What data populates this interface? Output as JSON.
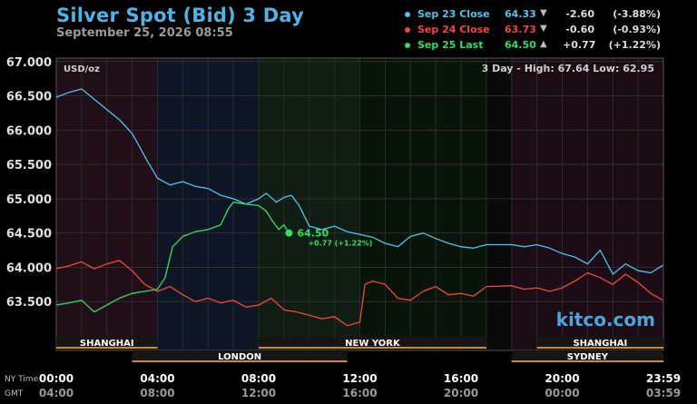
{
  "header": {
    "title": "Silver Spot (Bid) 3 Day",
    "subtitle": "September 25, 2026 08:55"
  },
  "legend": [
    {
      "label": "Sep 23 Close",
      "value": "64.33",
      "arrow": "▼",
      "change": "-2.60",
      "percent": "(-3.88%)",
      "color": "#4fc3ea"
    },
    {
      "label": "Sep 24 Close",
      "value": "63.73",
      "arrow": "▼",
      "change": "-0.60",
      "percent": "(-0.93%)",
      "color": "#f0483a"
    },
    {
      "label": "Sep 25 Last",
      "value": "64.50",
      "arrow": "▲",
      "change": "+0.77",
      "percent": "(+1.22%)",
      "color": "#2ee060"
    }
  ],
  "chart_data": {
    "type": "line",
    "unit_label": "USD/oz",
    "range_text": "3 Day - High: 67.64  Low: 62.95",
    "ylim": [
      63.0,
      67.05
    ],
    "y_ticks": [
      "67.000",
      "66.500",
      "66.000",
      "65.500",
      "65.000",
      "64.500",
      "64.000",
      "63.500"
    ],
    "xlim": [
      0,
      24
    ],
    "x_ticks": [
      {
        "h": 0,
        "ny": "00:00",
        "gmt": "04:00"
      },
      {
        "h": 4,
        "ny": "04:00",
        "gmt": "08:00"
      },
      {
        "h": 8,
        "ny": "08:00",
        "gmt": "12:00"
      },
      {
        "h": 12,
        "ny": "12:00",
        "gmt": "16:00"
      },
      {
        "h": 16,
        "ny": "16:00",
        "gmt": "20:00"
      },
      {
        "h": 20,
        "ny": "20:00",
        "gmt": "00:00"
      },
      {
        "h": 24,
        "ny": "23:59",
        "gmt": "03:59"
      }
    ],
    "x_axis_labels": {
      "ny": "NY Time",
      "gmt": "GMT"
    },
    "grid": true,
    "series": [
      {
        "name": "Sep 23 Close",
        "color": "#4fc3ea",
        "points": [
          [
            0,
            66.48
          ],
          [
            0.5,
            66.55
          ],
          [
            1,
            66.6
          ],
          [
            1.5,
            66.45
          ],
          [
            2,
            66.3
          ],
          [
            2.5,
            66.15
          ],
          [
            3,
            65.95
          ],
          [
            3.3,
            65.75
          ],
          [
            3.6,
            65.55
          ],
          [
            4,
            65.3
          ],
          [
            4.5,
            65.2
          ],
          [
            5,
            65.25
          ],
          [
            5.5,
            65.18
          ],
          [
            6,
            65.15
          ],
          [
            6.5,
            65.05
          ],
          [
            7,
            65.0
          ],
          [
            7.5,
            64.92
          ],
          [
            8,
            65.0
          ],
          [
            8.3,
            65.08
          ],
          [
            8.7,
            64.95
          ],
          [
            9,
            65.02
          ],
          [
            9.3,
            65.05
          ],
          [
            9.6,
            64.9
          ],
          [
            10,
            64.6
          ],
          [
            10.5,
            64.55
          ],
          [
            11,
            64.6
          ],
          [
            11.5,
            64.52
          ],
          [
            12,
            64.48
          ],
          [
            12.5,
            64.44
          ],
          [
            13,
            64.35
          ],
          [
            13.5,
            64.3
          ],
          [
            14,
            64.45
          ],
          [
            14.5,
            64.5
          ],
          [
            15,
            64.42
          ],
          [
            15.5,
            64.35
          ],
          [
            16,
            64.3
          ],
          [
            16.5,
            64.28
          ],
          [
            17,
            64.33
          ],
          [
            18,
            64.33
          ],
          [
            18.5,
            64.3
          ],
          [
            19,
            64.33
          ],
          [
            19.5,
            64.28
          ],
          [
            20,
            64.2
          ],
          [
            20.5,
            64.15
          ],
          [
            21,
            64.05
          ],
          [
            21.5,
            64.25
          ],
          [
            22,
            63.9
          ],
          [
            22.5,
            64.05
          ],
          [
            23,
            63.95
          ],
          [
            23.5,
            63.92
          ],
          [
            23.98,
            64.03
          ]
        ]
      },
      {
        "name": "Sep 24 Close",
        "color": "#f0483a",
        "points": [
          [
            0,
            63.98
          ],
          [
            0.5,
            64.02
          ],
          [
            1,
            64.08
          ],
          [
            1.5,
            63.98
          ],
          [
            2,
            64.05
          ],
          [
            2.5,
            64.1
          ],
          [
            3,
            63.95
          ],
          [
            3.5,
            63.75
          ],
          [
            4,
            63.65
          ],
          [
            4.5,
            63.72
          ],
          [
            5,
            63.6
          ],
          [
            5.5,
            63.5
          ],
          [
            6,
            63.55
          ],
          [
            6.5,
            63.48
          ],
          [
            7,
            63.52
          ],
          [
            7.5,
            63.42
          ],
          [
            8,
            63.45
          ],
          [
            8.5,
            63.55
          ],
          [
            9,
            63.38
          ],
          [
            9.5,
            63.35
          ],
          [
            10,
            63.3
          ],
          [
            10.5,
            63.25
          ],
          [
            11,
            63.28
          ],
          [
            11.5,
            63.15
          ],
          [
            12,
            63.2
          ],
          [
            12.2,
            63.75
          ],
          [
            12.5,
            63.8
          ],
          [
            13,
            63.75
          ],
          [
            13.5,
            63.55
          ],
          [
            14,
            63.52
          ],
          [
            14.5,
            63.65
          ],
          [
            15,
            63.72
          ],
          [
            15.5,
            63.6
          ],
          [
            16,
            63.62
          ],
          [
            16.5,
            63.58
          ],
          [
            17,
            63.72
          ],
          [
            18,
            63.73
          ],
          [
            18.5,
            63.68
          ],
          [
            19,
            63.7
          ],
          [
            19.5,
            63.65
          ],
          [
            20,
            63.7
          ],
          [
            20.5,
            63.8
          ],
          [
            21,
            63.92
          ],
          [
            21.5,
            63.85
          ],
          [
            22,
            63.75
          ],
          [
            22.5,
            63.9
          ],
          [
            23,
            63.78
          ],
          [
            23.5,
            63.62
          ],
          [
            23.98,
            63.52
          ]
        ]
      },
      {
        "name": "Sep 25 Last",
        "color": "#2ee060",
        "points": [
          [
            0,
            63.45
          ],
          [
            0.5,
            63.48
          ],
          [
            1,
            63.52
          ],
          [
            1.5,
            63.35
          ],
          [
            2,
            63.45
          ],
          [
            2.5,
            63.55
          ],
          [
            3,
            63.62
          ],
          [
            3.5,
            63.65
          ],
          [
            4,
            63.68
          ],
          [
            4.3,
            63.85
          ],
          [
            4.6,
            64.3
          ],
          [
            5,
            64.45
          ],
          [
            5.5,
            64.52
          ],
          [
            6,
            64.55
          ],
          [
            6.5,
            64.62
          ],
          [
            6.8,
            64.85
          ],
          [
            7,
            64.95
          ],
          [
            7.5,
            64.92
          ],
          [
            8,
            64.9
          ],
          [
            8.3,
            64.82
          ],
          [
            8.5,
            64.7
          ],
          [
            8.8,
            64.55
          ],
          [
            9,
            64.62
          ],
          [
            9.2,
            64.5
          ]
        ]
      }
    ],
    "last_point": {
      "value": "64.50",
      "change": "+0.77 (+1.22%)",
      "h": 9.2,
      "y": 64.5
    },
    "sessions_top": [
      {
        "name": "SHANGHAI",
        "start": 0,
        "end": 4
      },
      {
        "name": "NEW YORK",
        "start": 8,
        "end": 17
      },
      {
        "name": "SHANGHAI",
        "start": 19,
        "end": 24
      }
    ],
    "sessions_bottom": [
      {
        "name": "LONDON",
        "start": 3,
        "end": 11.5
      },
      {
        "name": "SYDNEY",
        "start": 18,
        "end": 24
      }
    ],
    "bands": [
      {
        "start": 0,
        "end": 4,
        "color": "#200f18"
      },
      {
        "start": 4,
        "end": 8,
        "color": "#0e1626"
      },
      {
        "start": 8,
        "end": 12,
        "color": "#0f1d12"
      },
      {
        "start": 12,
        "end": 17,
        "color": "#091408"
      },
      {
        "start": 17,
        "end": 18,
        "color": "#0a0a0a"
      },
      {
        "start": 18,
        "end": 24,
        "color": "#1c0c16"
      }
    ]
  },
  "watermark": "kitco.com"
}
